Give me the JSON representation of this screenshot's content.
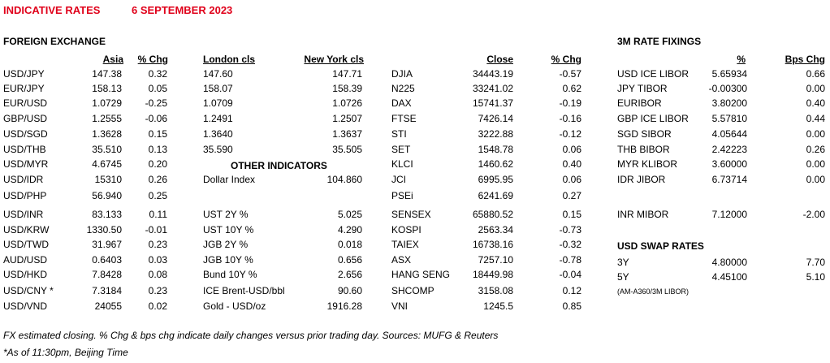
{
  "title": {
    "left": "INDICATIVE RATES",
    "date": "6 SEPTEMBER 2023"
  },
  "fx": {
    "section_title": "FOREIGN EXCHANGE",
    "headers": {
      "asia": "Asia",
      "chg": "% Chg",
      "london": "London cls",
      "newyork": "New York cls"
    },
    "rows": [
      {
        "pair": "USD/JPY",
        "asia": "147.38",
        "chg": "0.32",
        "london": "147.60",
        "ny": "147.71"
      },
      {
        "pair": "EUR/JPY",
        "asia": "158.13",
        "chg": "0.05",
        "london": "158.07",
        "ny": "158.39"
      },
      {
        "pair": "EUR/USD",
        "asia": "1.0729",
        "chg": "-0.25",
        "london": "1.0709",
        "ny": "1.0726"
      },
      {
        "pair": "GBP/USD",
        "asia": "1.2555",
        "chg": "-0.06",
        "london": "1.2491",
        "ny": "1.2507"
      },
      {
        "pair": "USD/SGD",
        "asia": "1.3628",
        "chg": "0.15",
        "london": "1.3640",
        "ny": "1.3637"
      },
      {
        "pair": "USD/THB",
        "asia": "35.510",
        "chg": "0.13",
        "london": "35.590",
        "ny": "35.505"
      },
      {
        "pair": "USD/MYR",
        "asia": "4.6745",
        "chg": "0.20",
        "london": "",
        "ny": ""
      },
      {
        "pair": "USD/IDR",
        "asia": "15310",
        "chg": "0.26",
        "london": "",
        "ny": ""
      },
      {
        "pair": "USD/PHP",
        "asia": "56.940",
        "chg": "0.25",
        "london": "",
        "ny": ""
      },
      {
        "pair": "USD/INR",
        "asia": "83.133",
        "chg": "0.11",
        "london": "",
        "ny": ""
      },
      {
        "pair": "USD/KRW",
        "asia": "1330.50",
        "chg": "-0.01",
        "london": "",
        "ny": ""
      },
      {
        "pair": "USD/TWD",
        "asia": "31.967",
        "chg": "0.23",
        "london": "",
        "ny": ""
      },
      {
        "pair": "AUD/USD",
        "asia": "0.6403",
        "chg": "0.03",
        "london": "",
        "ny": ""
      },
      {
        "pair": "USD/HKD",
        "asia": "7.8428",
        "chg": "0.08",
        "london": "",
        "ny": ""
      },
      {
        "pair": "USD/CNY *",
        "asia": "7.3184",
        "chg": "0.23",
        "london": "",
        "ny": ""
      },
      {
        "pair": "USD/VND",
        "asia": "24055",
        "chg": "0.02",
        "london": "",
        "ny": ""
      }
    ]
  },
  "other": {
    "title": "OTHER INDICATORS",
    "rows": [
      {
        "label": "Dollar Index",
        "value": "104.860"
      },
      {
        "label": "UST 2Y %",
        "value": "5.025"
      },
      {
        "label": "UST 10Y %",
        "value": "4.290"
      },
      {
        "label": "JGB 2Y %",
        "value": "0.018"
      },
      {
        "label": "JGB 10Y %",
        "value": "0.656"
      },
      {
        "label": "Bund 10Y %",
        "value": "2.656"
      },
      {
        "label": "ICE Brent-USD/bbl",
        "value": "90.60"
      },
      {
        "label": "Gold - USD/oz",
        "value": "1916.28"
      }
    ]
  },
  "indices": {
    "headers": {
      "close": "Close",
      "chg": "% Chg"
    },
    "rows": [
      {
        "name": "DJIA",
        "close": "34443.19",
        "chg": "-0.57"
      },
      {
        "name": "N225",
        "close": "33241.02",
        "chg": "0.62"
      },
      {
        "name": "DAX",
        "close": "15741.37",
        "chg": "-0.19"
      },
      {
        "name": "FTSE",
        "close": "7426.14",
        "chg": "-0.16"
      },
      {
        "name": "STI",
        "close": "3222.88",
        "chg": "-0.12"
      },
      {
        "name": "SET",
        "close": "1548.78",
        "chg": "0.06"
      },
      {
        "name": "KLCI",
        "close": "1460.62",
        "chg": "0.40"
      },
      {
        "name": "JCI",
        "close": "6995.95",
        "chg": "0.06"
      },
      {
        "name": "PSEi",
        "close": "6241.69",
        "chg": "0.27"
      },
      {
        "name": "SENSEX",
        "close": "65880.52",
        "chg": "0.15"
      },
      {
        "name": "KOSPI",
        "close": "2563.34",
        "chg": "-0.73"
      },
      {
        "name": "TAIEX",
        "close": "16738.16",
        "chg": "-0.32"
      },
      {
        "name": "ASX",
        "close": "7257.10",
        "chg": "-0.78"
      },
      {
        "name": "HANG SENG",
        "close": "18449.98",
        "chg": "-0.04"
      },
      {
        "name": "SHCOMP",
        "close": "3158.08",
        "chg": "0.12"
      },
      {
        "name": "VNI",
        "close": "1245.5",
        "chg": "0.85"
      }
    ]
  },
  "fixings": {
    "title": "3M RATE FIXINGS",
    "headers": {
      "pct": "%",
      "bps": "Bps Chg"
    },
    "rows": [
      {
        "name": "USD ICE LIBOR",
        "pct": "5.65934",
        "bps": "0.66"
      },
      {
        "name": "JPY TIBOR",
        "pct": "-0.00300",
        "bps": "0.00"
      },
      {
        "name": "EURIBOR",
        "pct": "3.80200",
        "bps": "0.40"
      },
      {
        "name": "GBP ICE LIBOR",
        "pct": "5.57810",
        "bps": "0.44"
      },
      {
        "name": "SGD SIBOR",
        "pct": "4.05644",
        "bps": "0.00"
      },
      {
        "name": "THB BIBOR",
        "pct": "2.42223",
        "bps": "0.26"
      },
      {
        "name": "MYR KLIBOR",
        "pct": "3.60000",
        "bps": "0.00"
      },
      {
        "name": "IDR JIBOR",
        "pct": "6.73714",
        "bps": "0.00"
      },
      {
        "name": "INR MIBOR",
        "pct": "7.12000",
        "bps": "-2.00"
      }
    ]
  },
  "swap": {
    "title": "USD SWAP RATES",
    "rows": [
      {
        "tenor": "3Y",
        "rate": "4.80000",
        "chg": "7.70"
      },
      {
        "tenor": "5Y",
        "rate": "4.45100",
        "chg": "5.10"
      }
    ],
    "note": "(AM-A360/3M LIBOR)"
  },
  "footer": {
    "line1": "FX estimated closing. % Chg & bps chg indicate daily changes versus prior trading day. Sources: MUFG & Reuters",
    "line2": "*As of 11:30pm, Beijing Time"
  }
}
